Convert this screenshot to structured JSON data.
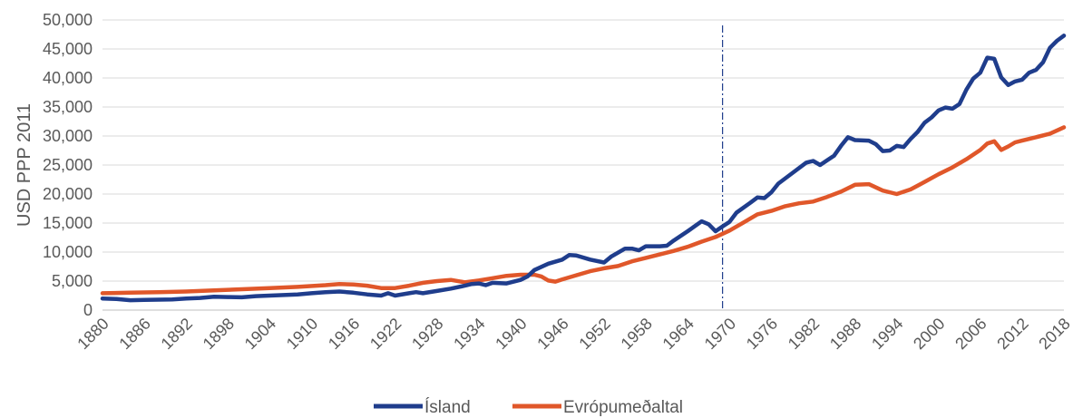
{
  "chart_data": {
    "type": "line",
    "title": "",
    "xlabel": "",
    "ylabel": "USD PPP 2011",
    "xlim": [
      1880,
      2018
    ],
    "ylim": [
      0,
      50000
    ],
    "ytick_values": [
      0,
      5000,
      10000,
      15000,
      20000,
      25000,
      30000,
      35000,
      40000,
      45000,
      50000
    ],
    "ytick_labels": [
      "0",
      "5,000",
      "10,000",
      "15,000",
      "20,000",
      "25,000",
      "30,000",
      "35,000",
      "40,000",
      "45,000",
      "50,000"
    ],
    "xtick_labels": [
      "1880",
      "1886",
      "1892",
      "1898",
      "1904",
      "1910",
      "1916",
      "1922",
      "1928",
      "1934",
      "1940",
      "1946",
      "1952",
      "1958",
      "1964",
      "1970",
      "1976",
      "1982",
      "1988",
      "1994",
      "2000",
      "2006",
      "2012",
      "2018"
    ],
    "grid": "horizontal",
    "legend_position": "bottom",
    "reference_line_x": 1969,
    "series": [
      {
        "name": "Ísland",
        "color": "#1f3d8c",
        "points": [
          [
            1880,
            2000
          ],
          [
            1882,
            1900
          ],
          [
            1884,
            1700
          ],
          [
            1886,
            1750
          ],
          [
            1888,
            1800
          ],
          [
            1890,
            1850
          ],
          [
            1892,
            2000
          ],
          [
            1894,
            2100
          ],
          [
            1896,
            2300
          ],
          [
            1898,
            2250
          ],
          [
            1900,
            2200
          ],
          [
            1902,
            2400
          ],
          [
            1904,
            2500
          ],
          [
            1906,
            2600
          ],
          [
            1908,
            2700
          ],
          [
            1910,
            2900
          ],
          [
            1912,
            3100
          ],
          [
            1914,
            3200
          ],
          [
            1916,
            3000
          ],
          [
            1918,
            2700
          ],
          [
            1920,
            2500
          ],
          [
            1921,
            2900
          ],
          [
            1922,
            2500
          ],
          [
            1924,
            2900
          ],
          [
            1925,
            3100
          ],
          [
            1926,
            2900
          ],
          [
            1928,
            3300
          ],
          [
            1930,
            3700
          ],
          [
            1932,
            4200
          ],
          [
            1933,
            4500
          ],
          [
            1934,
            4600
          ],
          [
            1935,
            4300
          ],
          [
            1936,
            4700
          ],
          [
            1938,
            4600
          ],
          [
            1940,
            5200
          ],
          [
            1941,
            5800
          ],
          [
            1942,
            6900
          ],
          [
            1944,
            8000
          ],
          [
            1946,
            8700
          ],
          [
            1947,
            9500
          ],
          [
            1948,
            9400
          ],
          [
            1950,
            8700
          ],
          [
            1952,
            8200
          ],
          [
            1953,
            9200
          ],
          [
            1955,
            10600
          ],
          [
            1956,
            10600
          ],
          [
            1957,
            10300
          ],
          [
            1958,
            11000
          ],
          [
            1960,
            11000
          ],
          [
            1961,
            11100
          ],
          [
            1962,
            12000
          ],
          [
            1964,
            13600
          ],
          [
            1966,
            15300
          ],
          [
            1967,
            14800
          ],
          [
            1968,
            13600
          ],
          [
            1969,
            14400
          ],
          [
            1970,
            15200
          ],
          [
            1971,
            16800
          ],
          [
            1973,
            18500
          ],
          [
            1974,
            19400
          ],
          [
            1975,
            19300
          ],
          [
            1976,
            20300
          ],
          [
            1977,
            21800
          ],
          [
            1979,
            23600
          ],
          [
            1981,
            25400
          ],
          [
            1982,
            25700
          ],
          [
            1983,
            25000
          ],
          [
            1984,
            25800
          ],
          [
            1985,
            26600
          ],
          [
            1986,
            28300
          ],
          [
            1987,
            29800
          ],
          [
            1988,
            29300
          ],
          [
            1990,
            29200
          ],
          [
            1991,
            28600
          ],
          [
            1992,
            27400
          ],
          [
            1993,
            27500
          ],
          [
            1994,
            28300
          ],
          [
            1995,
            28100
          ],
          [
            1996,
            29500
          ],
          [
            1997,
            30700
          ],
          [
            1998,
            32300
          ],
          [
            1999,
            33200
          ],
          [
            2000,
            34400
          ],
          [
            2001,
            34900
          ],
          [
            2002,
            34700
          ],
          [
            2003,
            35500
          ],
          [
            2004,
            38000
          ],
          [
            2005,
            39900
          ],
          [
            2006,
            40900
          ],
          [
            2007,
            43500
          ],
          [
            2008,
            43300
          ],
          [
            2009,
            40100
          ],
          [
            2010,
            38800
          ],
          [
            2011,
            39400
          ],
          [
            2012,
            39700
          ],
          [
            2013,
            40900
          ],
          [
            2014,
            41400
          ],
          [
            2015,
            42700
          ],
          [
            2016,
            45200
          ],
          [
            2017,
            46400
          ],
          [
            2018,
            47300
          ]
        ]
      },
      {
        "name": "Evrópumeðaltal",
        "color": "#e0572a",
        "points": [
          [
            1880,
            2900
          ],
          [
            1884,
            3000
          ],
          [
            1888,
            3100
          ],
          [
            1892,
            3200
          ],
          [
            1896,
            3400
          ],
          [
            1900,
            3600
          ],
          [
            1904,
            3800
          ],
          [
            1908,
            4000
          ],
          [
            1912,
            4300
          ],
          [
            1914,
            4500
          ],
          [
            1916,
            4400
          ],
          [
            1918,
            4200
          ],
          [
            1920,
            3800
          ],
          [
            1922,
            3800
          ],
          [
            1924,
            4200
          ],
          [
            1926,
            4700
          ],
          [
            1928,
            5000
          ],
          [
            1930,
            5200
          ],
          [
            1932,
            4800
          ],
          [
            1934,
            5100
          ],
          [
            1936,
            5500
          ],
          [
            1938,
            5900
          ],
          [
            1940,
            6100
          ],
          [
            1942,
            6100
          ],
          [
            1943,
            5800
          ],
          [
            1944,
            5100
          ],
          [
            1945,
            4900
          ],
          [
            1946,
            5300
          ],
          [
            1948,
            6000
          ],
          [
            1950,
            6700
          ],
          [
            1952,
            7200
          ],
          [
            1954,
            7600
          ],
          [
            1956,
            8400
          ],
          [
            1958,
            9000
          ],
          [
            1960,
            9600
          ],
          [
            1962,
            10200
          ],
          [
            1964,
            10900
          ],
          [
            1966,
            11800
          ],
          [
            1968,
            12600
          ],
          [
            1970,
            13700
          ],
          [
            1972,
            15100
          ],
          [
            1974,
            16500
          ],
          [
            1976,
            17100
          ],
          [
            1978,
            17900
          ],
          [
            1980,
            18400
          ],
          [
            1982,
            18700
          ],
          [
            1984,
            19500
          ],
          [
            1986,
            20400
          ],
          [
            1988,
            21600
          ],
          [
            1990,
            21700
          ],
          [
            1992,
            20600
          ],
          [
            1994,
            20000
          ],
          [
            1996,
            20800
          ],
          [
            1998,
            22100
          ],
          [
            2000,
            23400
          ],
          [
            2002,
            24600
          ],
          [
            2004,
            26000
          ],
          [
            2006,
            27600
          ],
          [
            2007,
            28700
          ],
          [
            2008,
            29100
          ],
          [
            2009,
            27600
          ],
          [
            2010,
            28200
          ],
          [
            2011,
            28900
          ],
          [
            2012,
            29200
          ],
          [
            2014,
            29800
          ],
          [
            2016,
            30400
          ],
          [
            2018,
            31500
          ]
        ]
      }
    ]
  }
}
